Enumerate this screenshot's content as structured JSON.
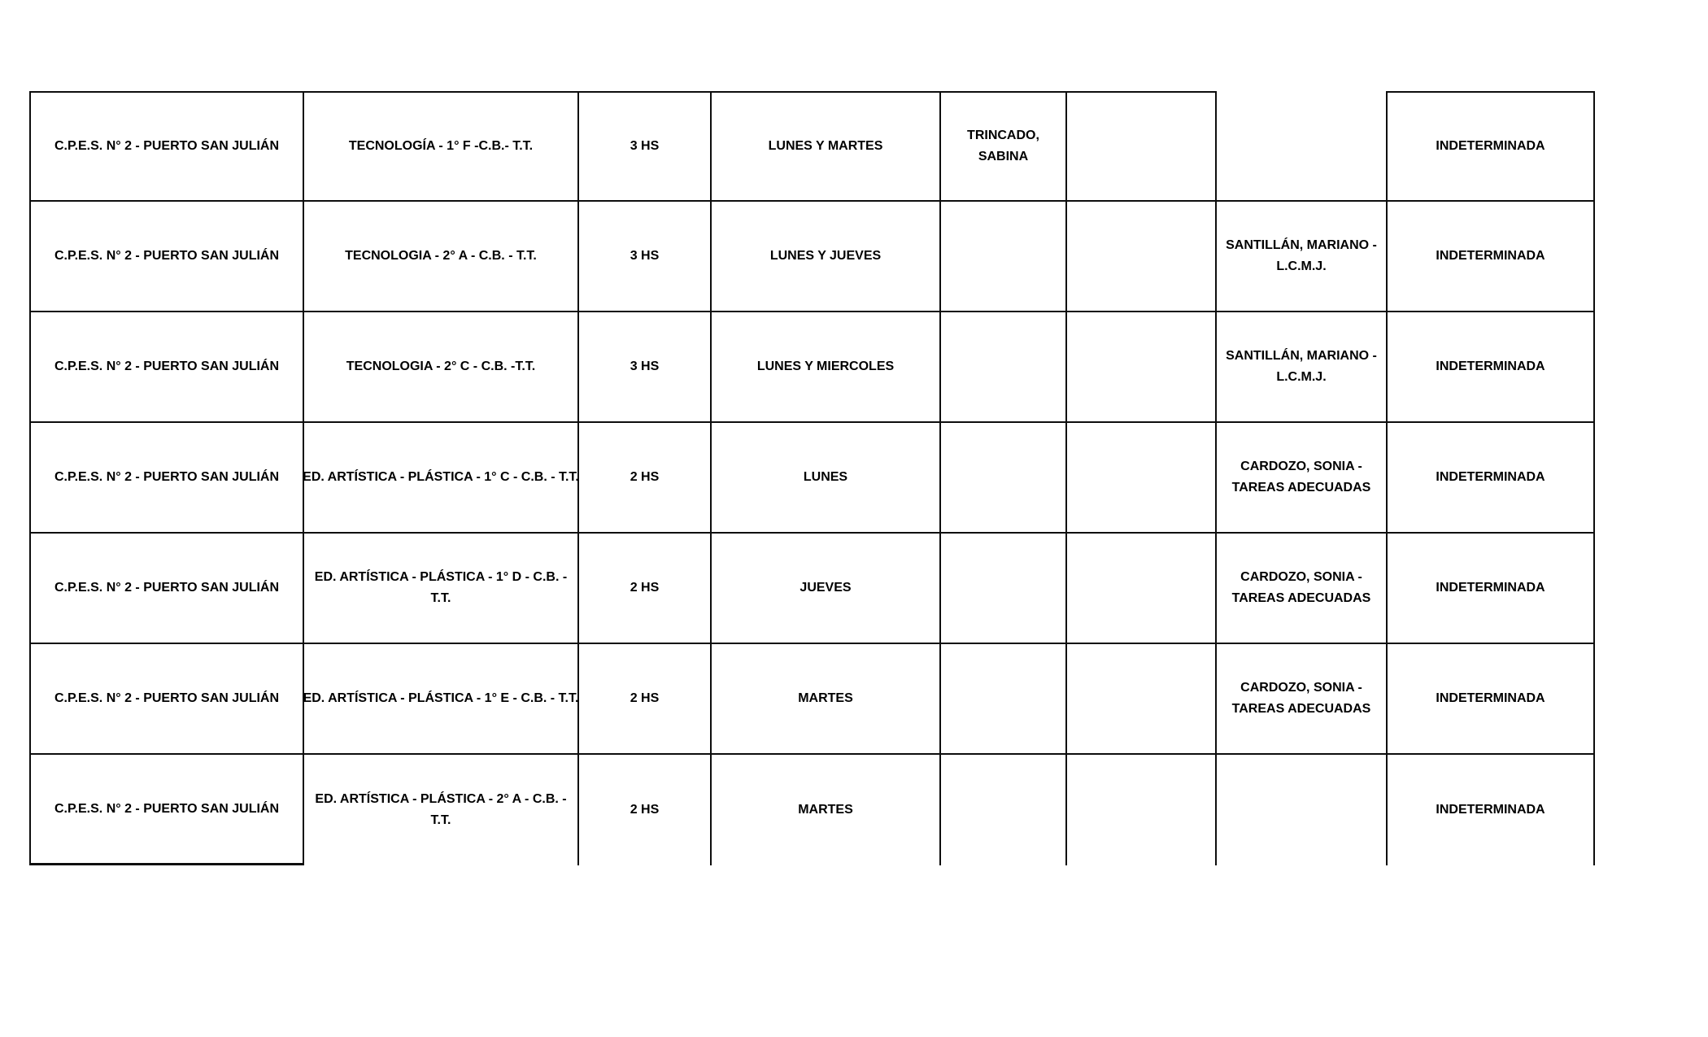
{
  "page": {
    "background": "#ffffff",
    "text_color": "#000000",
    "border_color": "#0d0d0d"
  },
  "table": {
    "description": "class-assignment-grid",
    "cell_names": [
      "school",
      "subject",
      "weekly-hours",
      "days",
      "teacher",
      "unassigned",
      "teacher-observation",
      "term"
    ],
    "rows": [
      {
        "cells": [
          [
            "C.P.E.S. N° 2 - PUERTO SAN JULIÁN"
          ],
          [
            "TECNOLOGÍA - 1° F -C.B.- T.T."
          ],
          [
            "3 HS"
          ],
          [
            "LUNES Y MARTES"
          ],
          [
            "TRINCADO,",
            "SABINA"
          ],
          [],
          [],
          [
            "INDETERMINADA"
          ]
        ]
      },
      {
        "cells": [
          [
            "C.P.E.S. N° 2 - PUERTO SAN JULIÁN"
          ],
          [
            "TECNOLOGIA - 2° A - C.B. - T.T."
          ],
          [
            "3 HS"
          ],
          [
            "LUNES Y JUEVES"
          ],
          [],
          [],
          [
            "SANTILLÁN, MARIANO -",
            "L.C.M.J."
          ],
          [
            "INDETERMINADA"
          ]
        ]
      },
      {
        "cells": [
          [
            "C.P.E.S. N° 2 - PUERTO SAN JULIÁN"
          ],
          [
            "TECNOLOGIA - 2° C - C.B. -T.T."
          ],
          [
            "3 HS"
          ],
          [
            "LUNES Y MIERCOLES"
          ],
          [],
          [],
          [
            "SANTILLÁN, MARIANO -",
            "L.C.M.J."
          ],
          [
            "INDETERMINADA"
          ]
        ]
      },
      {
        "cells": [
          [
            "C.P.E.S. N° 2 - PUERTO SAN JULIÁN"
          ],
          [
            "ED. ARTÍSTICA - PLÁSTICA - 1° C - C.B. - T.T."
          ],
          [
            "2 HS"
          ],
          [
            "LUNES"
          ],
          [],
          [],
          [
            "CARDOZO, SONIA -",
            "TAREAS ADECUADAS"
          ],
          [
            "INDETERMINADA"
          ]
        ]
      },
      {
        "cells": [
          [
            "C.P.E.S. N° 2 - PUERTO SAN JULIÁN"
          ],
          [
            "ED. ARTÍSTICA - PLÁSTICA - 1° D - C.B. -",
            "T.T."
          ],
          [
            "2 HS"
          ],
          [
            "JUEVES"
          ],
          [],
          [],
          [
            "CARDOZO, SONIA -",
            "TAREAS ADECUADAS"
          ],
          [
            "INDETERMINADA"
          ]
        ]
      },
      {
        "cells": [
          [
            "C.P.E.S. N° 2 - PUERTO SAN JULIÁN"
          ],
          [
            "ED. ARTÍSTICA - PLÁSTICA - 1° E - C.B. - T.T."
          ],
          [
            "2 HS"
          ],
          [
            "MARTES"
          ],
          [],
          [],
          [
            "CARDOZO, SONIA -",
            "TAREAS ADECUADAS"
          ],
          [
            "INDETERMINADA"
          ]
        ]
      },
      {
        "cells": [
          [
            "C.P.E.S. N° 2 - PUERTO SAN JULIÁN"
          ],
          [
            "ED. ARTÍSTICA - PLÁSTICA - 2° A - C.B. -",
            "T.T."
          ],
          [
            "2 HS"
          ],
          [
            "MARTES"
          ],
          [],
          [],
          [],
          [
            "INDETERMINADA"
          ]
        ]
      }
    ]
  }
}
